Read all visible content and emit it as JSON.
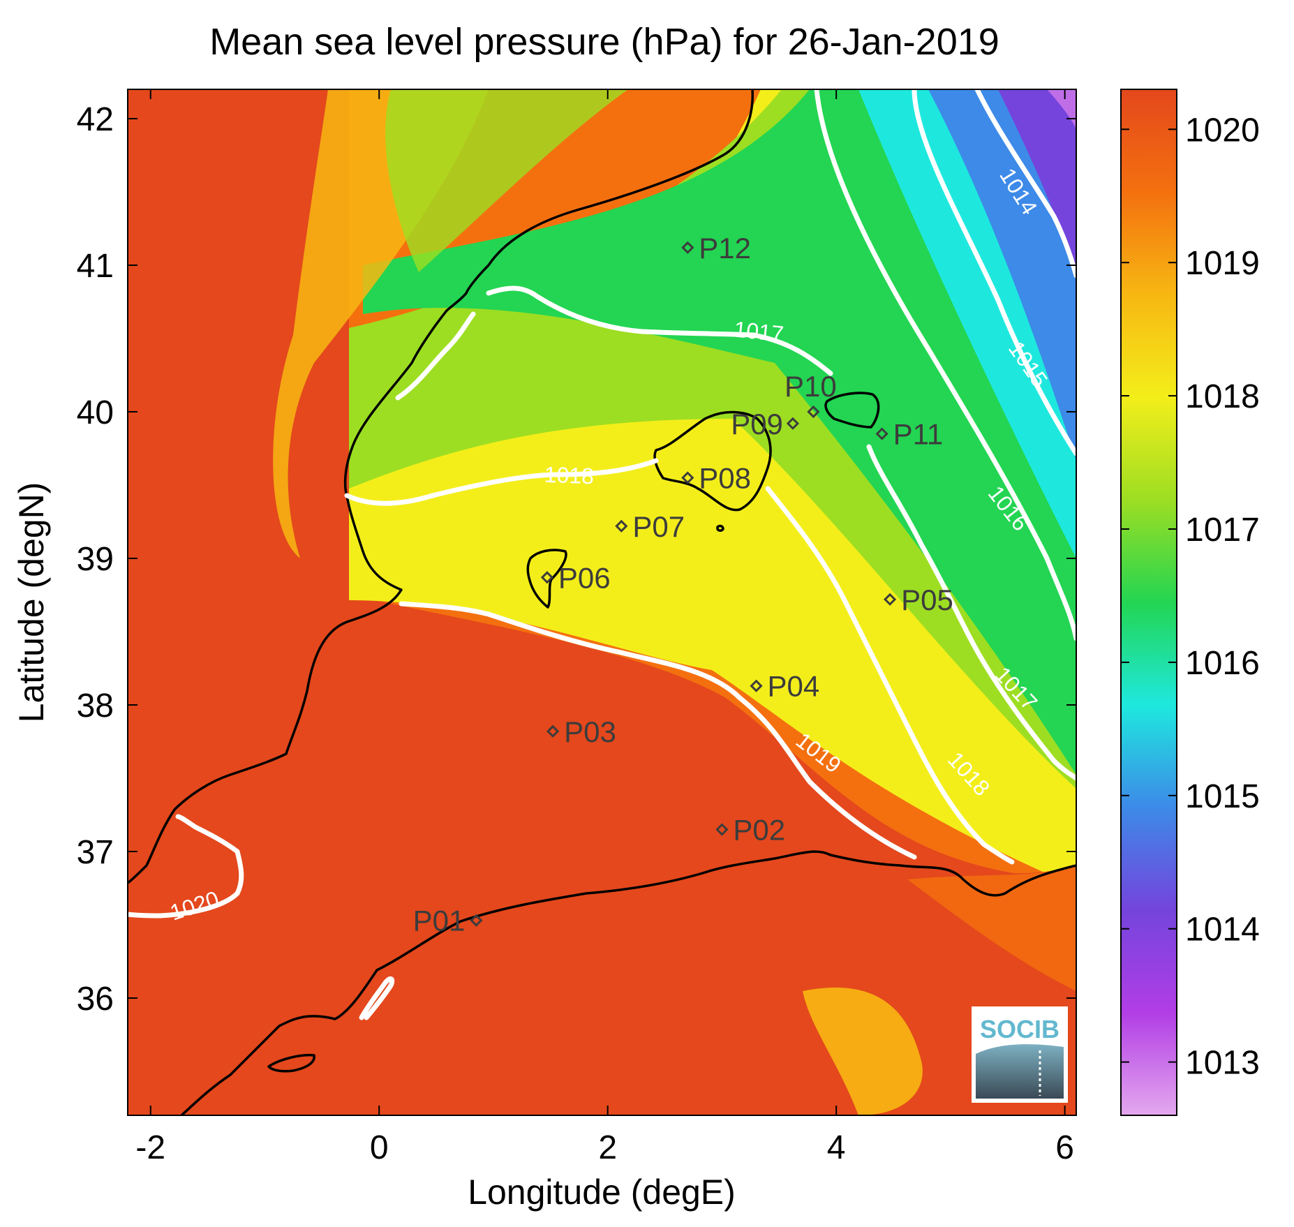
{
  "chart_data": {
    "type": "heatmap",
    "title": "Mean sea level pressure (hPa) for 26-Jan-2019",
    "xlabel": "Longitude (degE)",
    "ylabel": "Latitude (degN)",
    "xlim": [
      -2.2,
      6.1
    ],
    "ylim": [
      35.2,
      42.2
    ],
    "xticks": [
      -2,
      0,
      2,
      4,
      6
    ],
    "yticks": [
      36,
      37,
      38,
      39,
      40,
      41,
      42
    ],
    "xtick_labels": [
      "-2",
      "0",
      "2",
      "4",
      "6"
    ],
    "ytick_labels": [
      "36",
      "37",
      "38",
      "39",
      "40",
      "41",
      "42"
    ],
    "colorbar": {
      "range": [
        1012.6,
        1020.3
      ],
      "ticks": [
        1013,
        1014,
        1015,
        1016,
        1017,
        1018,
        1019,
        1020
      ],
      "tick_labels": [
        "1013",
        "1014",
        "1015",
        "1016",
        "1017",
        "1018",
        "1019",
        "1020"
      ],
      "colors": [
        "#e4a8ee",
        "#b23ee6",
        "#7444dc",
        "#3d8ae8",
        "#1ee8de",
        "#23d552",
        "#9dde22",
        "#f3ee1a",
        "#f7b712",
        "#f4700f",
        "#e4481c"
      ]
    },
    "contours": [
      {
        "level": 1014,
        "label": "1014"
      },
      {
        "level": 1015,
        "label": "1015"
      },
      {
        "level": 1016,
        "label": "1016"
      },
      {
        "level": 1017,
        "label": "1017"
      },
      {
        "level": 1017,
        "label": "1017"
      },
      {
        "level": 1018,
        "label": "1018"
      },
      {
        "level": 1018,
        "label": "1018"
      },
      {
        "level": 1019,
        "label": "1019"
      },
      {
        "level": 1020,
        "label": "1020"
      }
    ],
    "stations": [
      {
        "name": "P01",
        "lon": 0.85,
        "lat": 36.53
      },
      {
        "name": "P02",
        "lon": 3.0,
        "lat": 37.15
      },
      {
        "name": "P03",
        "lon": 1.52,
        "lat": 37.82
      },
      {
        "name": "P04",
        "lon": 3.3,
        "lat": 38.13
      },
      {
        "name": "P05",
        "lon": 4.47,
        "lat": 38.72
      },
      {
        "name": "P06",
        "lon": 1.47,
        "lat": 38.87
      },
      {
        "name": "P07",
        "lon": 2.12,
        "lat": 39.22
      },
      {
        "name": "P08",
        "lon": 2.7,
        "lat": 39.55
      },
      {
        "name": "P09",
        "lon": 3.62,
        "lat": 39.92
      },
      {
        "name": "P10",
        "lon": 3.8,
        "lat": 40.0
      },
      {
        "name": "P11",
        "lon": 4.4,
        "lat": 39.85
      },
      {
        "name": "P12",
        "lon": 2.7,
        "lat": 41.12
      }
    ]
  },
  "logo": {
    "text": "SOCIB"
  }
}
